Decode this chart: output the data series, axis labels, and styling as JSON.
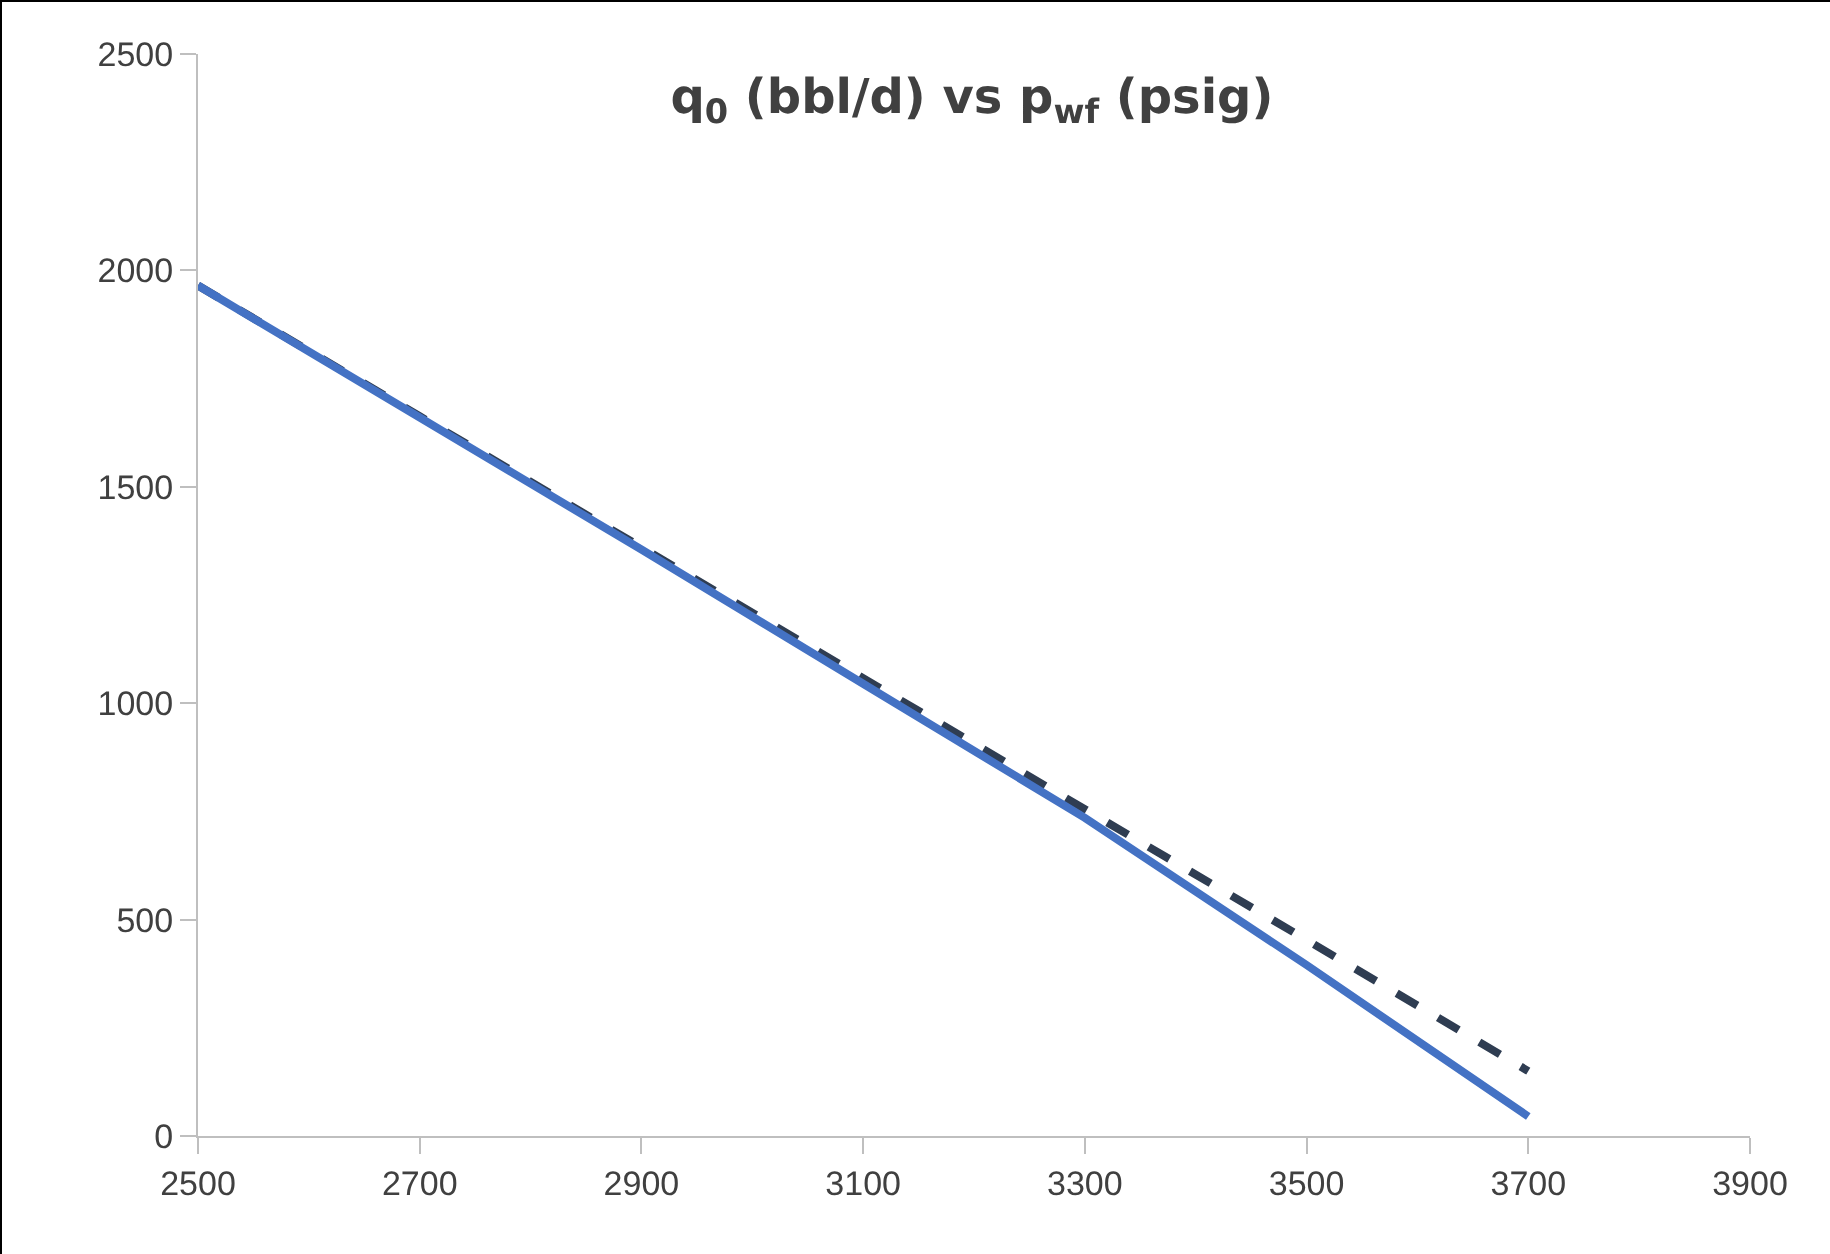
{
  "chart_data": {
    "type": "line",
    "title": "q$_{0}$ (bbl/d) vs p$_{wf}$ (psig)",
    "x": [
      2500,
      2700,
      2900,
      3100,
      3300,
      3500,
      3700
    ],
    "series": [
      {
        "color": "#2f3d52",
        "line_style": "dashed",
        "values": [
          1965,
          1663,
          1360,
          1058,
          755,
          453,
          150
        ]
      },
      {
        "color": "#4472c4",
        "line_style": "solid",
        "values": [
          1965,
          1660,
          1355,
          1045,
          735,
          395,
          45
        ]
      }
    ],
    "xlim": [
      2500,
      3900
    ],
    "xticks": [
      2500,
      2700,
      2900,
      3100,
      3300,
      3500,
      3700,
      3900
    ],
    "ylim": [
      0,
      2500
    ],
    "yticks": [
      0,
      500,
      1000,
      1500,
      2000,
      2500
    ],
    "marker": "none"
  }
}
